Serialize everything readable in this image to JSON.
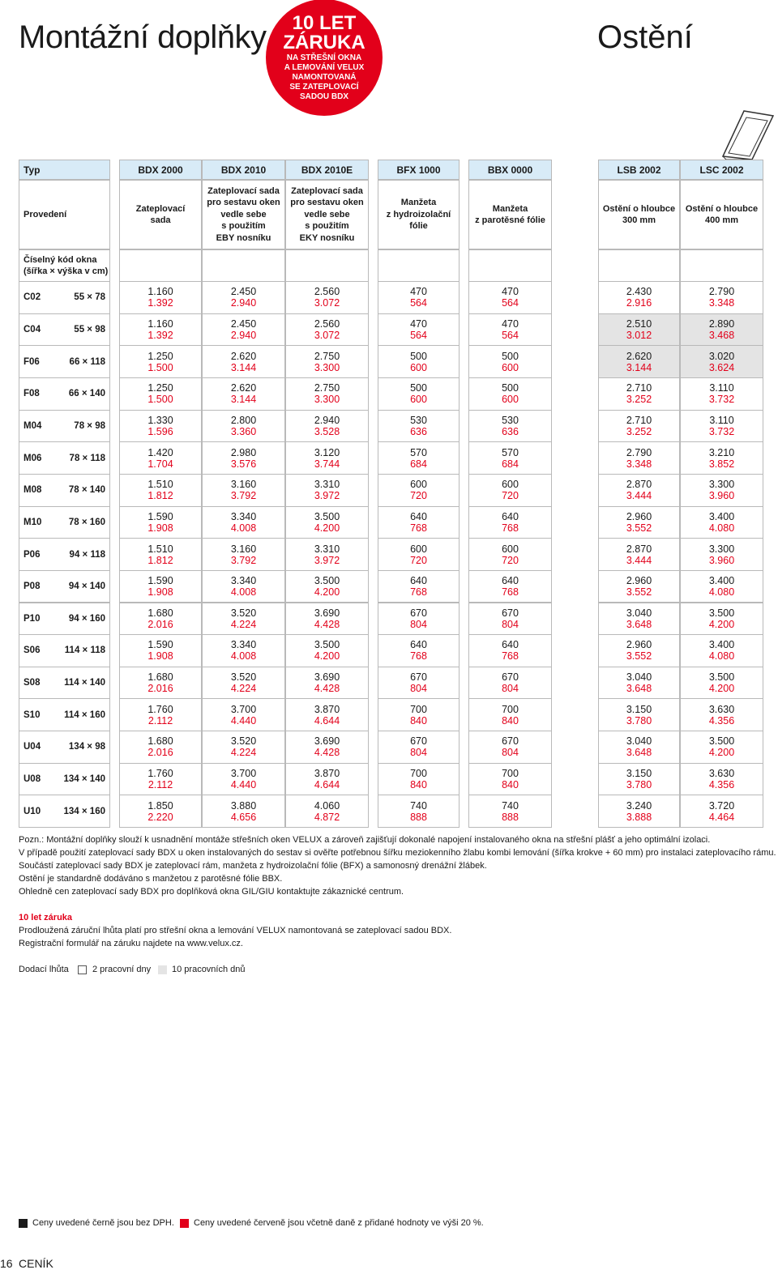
{
  "header": {
    "title_left": "Montážní doplňky",
    "title_right": "Ostění",
    "badge": [
      "10 LET",
      "ZÁRUKA",
      "NA STŘEŠNÍ OKNA",
      "A LEMOVÁNÍ VELUX",
      "NAMONTOVANÁ",
      "SE ZATEPLOVACÍ",
      "SADOU BDX"
    ]
  },
  "table": {
    "type_label": "Typ",
    "provedeni_label": "Provedení",
    "code_label": [
      "Číselný kód okna",
      "(šířka × výška v cm)"
    ],
    "columns": [
      {
        "code": "BDX 2000",
        "description": [
          "Zateplovací",
          "sada"
        ]
      },
      {
        "code": "BDX 2010",
        "description": [
          "Zateplovací sada",
          "pro sestavu oken",
          "vedle sebe",
          "s použitím",
          "EBY nosníku"
        ]
      },
      {
        "code": "BDX 2010E",
        "description": [
          "Zateplovací sada",
          "pro sestavu oken",
          "vedle sebe",
          "s použitím",
          "EKY nosníku"
        ]
      },
      {
        "code": "BFX 1000",
        "description": [
          "Manžeta",
          "z hydroizolační",
          "fólie"
        ]
      },
      {
        "code": "BBX 0000",
        "description": [
          "Manžeta",
          "z parotěsné fólie"
        ]
      },
      {
        "code": "LSB 2002",
        "description": [
          "Ostění o hloubce",
          "300 mm"
        ]
      },
      {
        "code": "LSC 2002",
        "description": [
          "Ostění o hloubce",
          "400 mm"
        ]
      }
    ],
    "rows": [
      {
        "code": "C02",
        "size": "55 × 78",
        "prices": [
          [
            "1.160",
            "1.392"
          ],
          [
            "2.450",
            "2.940"
          ],
          [
            "2.560",
            "3.072"
          ],
          [
            "470",
            "564"
          ],
          [
            "470",
            "564"
          ],
          [
            "2.430",
            "2.916"
          ],
          [
            "2.790",
            "3.348"
          ]
        ]
      },
      {
        "code": "C04",
        "size": "55 × 98",
        "prices": [
          [
            "1.160",
            "1.392"
          ],
          [
            "2.450",
            "2.940"
          ],
          [
            "2.560",
            "3.072"
          ],
          [
            "470",
            "564"
          ],
          [
            "470",
            "564"
          ],
          [
            "2.510",
            "3.012"
          ],
          [
            "2.890",
            "3.468"
          ]
        ]
      },
      {
        "code": "F06",
        "size": "66 × 118",
        "prices": [
          [
            "1.250",
            "1.500"
          ],
          [
            "2.620",
            "3.144"
          ],
          [
            "2.750",
            "3.300"
          ],
          [
            "500",
            "600"
          ],
          [
            "500",
            "600"
          ],
          [
            "2.620",
            "3.144"
          ],
          [
            "3.020",
            "3.624"
          ]
        ]
      },
      {
        "code": "F08",
        "size": "66 × 140",
        "prices": [
          [
            "1.250",
            "1.500"
          ],
          [
            "2.620",
            "3.144"
          ],
          [
            "2.750",
            "3.300"
          ],
          [
            "500",
            "600"
          ],
          [
            "500",
            "600"
          ],
          [
            "2.710",
            "3.252"
          ],
          [
            "3.110",
            "3.732"
          ]
        ]
      },
      {
        "code": "M04",
        "size": "78 × 98",
        "prices": [
          [
            "1.330",
            "1.596"
          ],
          [
            "2.800",
            "3.360"
          ],
          [
            "2.940",
            "3.528"
          ],
          [
            "530",
            "636"
          ],
          [
            "530",
            "636"
          ],
          [
            "2.710",
            "3.252"
          ],
          [
            "3.110",
            "3.732"
          ]
        ]
      },
      {
        "code": "M06",
        "size": "78 × 118",
        "prices": [
          [
            "1.420",
            "1.704"
          ],
          [
            "2.980",
            "3.576"
          ],
          [
            "3.120",
            "3.744"
          ],
          [
            "570",
            "684"
          ],
          [
            "570",
            "684"
          ],
          [
            "2.790",
            "3.348"
          ],
          [
            "3.210",
            "3.852"
          ]
        ]
      },
      {
        "code": "M08",
        "size": "78 × 140",
        "prices": [
          [
            "1.510",
            "1.812"
          ],
          [
            "3.160",
            "3.792"
          ],
          [
            "3.310",
            "3.972"
          ],
          [
            "600",
            "720"
          ],
          [
            "600",
            "720"
          ],
          [
            "2.870",
            "3.444"
          ],
          [
            "3.300",
            "3.960"
          ]
        ]
      },
      {
        "code": "M10",
        "size": "78 × 160",
        "prices": [
          [
            "1.590",
            "1.908"
          ],
          [
            "3.340",
            "4.008"
          ],
          [
            "3.500",
            "4.200"
          ],
          [
            "640",
            "768"
          ],
          [
            "640",
            "768"
          ],
          [
            "2.960",
            "3.552"
          ],
          [
            "3.400",
            "4.080"
          ]
        ]
      },
      {
        "code": "P06",
        "size": "94 × 118",
        "prices": [
          [
            "1.510",
            "1.812"
          ],
          [
            "3.160",
            "3.792"
          ],
          [
            "3.310",
            "3.972"
          ],
          [
            "600",
            "720"
          ],
          [
            "600",
            "720"
          ],
          [
            "2.870",
            "3.444"
          ],
          [
            "3.300",
            "3.960"
          ]
        ]
      },
      {
        "code": "P08",
        "size": "94 × 140",
        "prices": [
          [
            "1.590",
            "1.908"
          ],
          [
            "3.340",
            "4.008"
          ],
          [
            "3.500",
            "4.200"
          ],
          [
            "640",
            "768"
          ],
          [
            "640",
            "768"
          ],
          [
            "2.960",
            "3.552"
          ],
          [
            "3.400",
            "4.080"
          ]
        ]
      },
      {
        "code": "P10",
        "size": "94 × 160",
        "prices": [
          [
            "1.680",
            "2.016"
          ],
          [
            "3.520",
            "4.224"
          ],
          [
            "3.690",
            "4.428"
          ],
          [
            "670",
            "804"
          ],
          [
            "670",
            "804"
          ],
          [
            "3.040",
            "3.648"
          ],
          [
            "3.500",
            "4.200"
          ]
        ]
      },
      {
        "code": "S06",
        "size": "114 × 118",
        "prices": [
          [
            "1.590",
            "1.908"
          ],
          [
            "3.340",
            "4.008"
          ],
          [
            "3.500",
            "4.200"
          ],
          [
            "640",
            "768"
          ],
          [
            "640",
            "768"
          ],
          [
            "2.960",
            "3.552"
          ],
          [
            "3.400",
            "4.080"
          ]
        ]
      },
      {
        "code": "S08",
        "size": "114 × 140",
        "prices": [
          [
            "1.680",
            "2.016"
          ],
          [
            "3.520",
            "4.224"
          ],
          [
            "3.690",
            "4.428"
          ],
          [
            "670",
            "804"
          ],
          [
            "670",
            "804"
          ],
          [
            "3.040",
            "3.648"
          ],
          [
            "3.500",
            "4.200"
          ]
        ]
      },
      {
        "code": "S10",
        "size": "114 × 160",
        "prices": [
          [
            "1.760",
            "2.112"
          ],
          [
            "3.700",
            "4.440"
          ],
          [
            "3.870",
            "4.644"
          ],
          [
            "700",
            "840"
          ],
          [
            "700",
            "840"
          ],
          [
            "3.150",
            "3.780"
          ],
          [
            "3.630",
            "4.356"
          ]
        ]
      },
      {
        "code": "U04",
        "size": "134 × 98",
        "prices": [
          [
            "1.680",
            "2.016"
          ],
          [
            "3.520",
            "4.224"
          ],
          [
            "3.690",
            "4.428"
          ],
          [
            "670",
            "804"
          ],
          [
            "670",
            "804"
          ],
          [
            "3.040",
            "3.648"
          ],
          [
            "3.500",
            "4.200"
          ]
        ]
      },
      {
        "code": "U08",
        "size": "134 × 140",
        "prices": [
          [
            "1.760",
            "2.112"
          ],
          [
            "3.700",
            "4.440"
          ],
          [
            "3.870",
            "4.644"
          ],
          [
            "700",
            "840"
          ],
          [
            "700",
            "840"
          ],
          [
            "3.150",
            "3.780"
          ],
          [
            "3.630",
            "4.356"
          ]
        ]
      },
      {
        "code": "U10",
        "size": "134 × 160",
        "prices": [
          [
            "1.850",
            "2.220"
          ],
          [
            "3.880",
            "4.656"
          ],
          [
            "4.060",
            "4.872"
          ],
          [
            "740",
            "888"
          ],
          [
            "740",
            "888"
          ],
          [
            "3.240",
            "3.888"
          ],
          [
            "3.720",
            "4.464"
          ]
        ]
      }
    ]
  },
  "notes": [
    "Pozn.: Montážní doplňky slouží k usnadnění montáže střešních oken VELUX a zároveň zajišťují dokonalé napojení instalovaného okna na střešní plášť a jeho optimální izolaci.",
    "V případě použití zateplovací sady BDX u oken instalovaných do sestav si ověřte potřebnou šířku meziokenního žlabu kombi lemování (šířka krokve + 60 mm) pro instalaci zateplovacího rámu.",
    "Součástí zateplovací sady BDX je zateplovací rám, manžeta z hydroizolační fólie (BFX) a samonosný drenážní žlábek.",
    "Ostění je standardně dodáváno s manžetou z parotěsné fólie BBX.",
    "Ohledně cen zateplovací sady BDX pro doplňková okna GIL/GIU kontaktujte zákaznické centrum."
  ],
  "warranty": {
    "title": "10 let záruka",
    "lines": [
      "Prodloužená záruční lhůta platí pro střešní okna a lemování VELUX namontovaná se zateplovací sadou BDX.",
      "Registrační formulář na záruku najdete na www.velux.cz."
    ]
  },
  "delivery": {
    "label": "Dodací lhůta",
    "short": "2 pracovní dny",
    "long": "10 pracovních dnů"
  },
  "legend": {
    "black": "Ceny uvedené černě jsou bez DPH.",
    "red": "Ceny uvedené červeně jsou včetně daně z přidané hodnoty ve výši 20 %."
  },
  "footer": {
    "page": "16",
    "section": "CENÍK"
  }
}
